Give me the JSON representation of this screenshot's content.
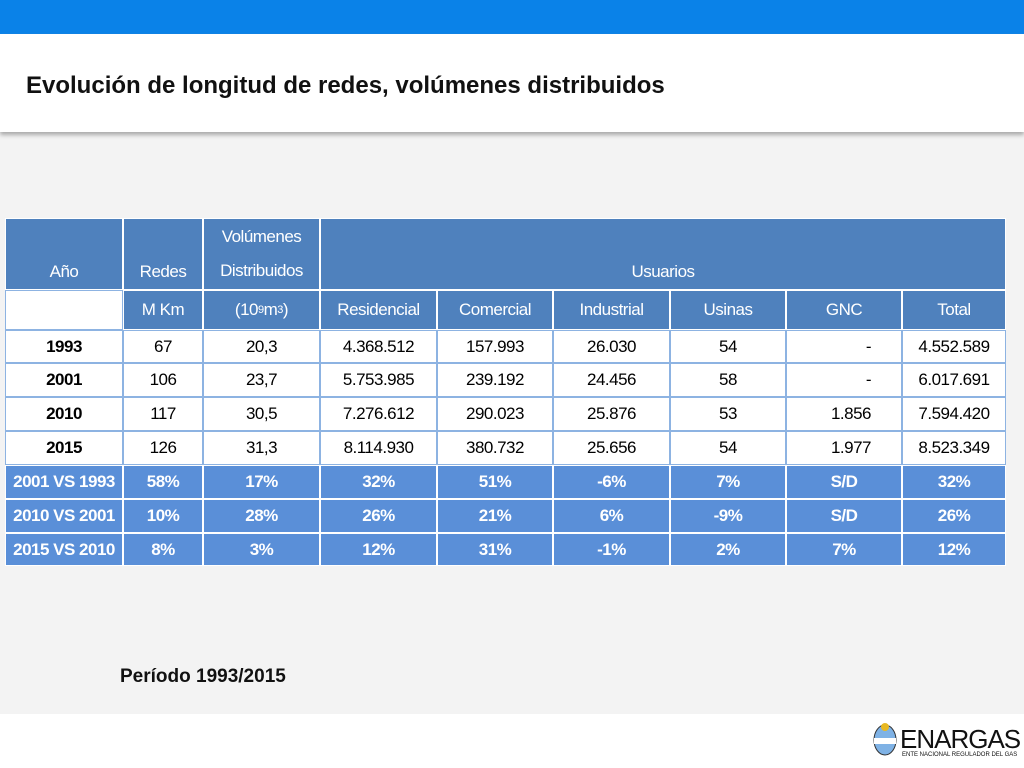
{
  "header": {
    "title": "Evolución de longitud de redes, volúmenes distribuidos"
  },
  "table": {
    "headers": {
      "ano": "Año",
      "redes": "Redes",
      "volumenes": "Volúmenes",
      "distribuidos": "Distribuidos",
      "usuarios": "Usuarios",
      "redes_unit": "M Km",
      "vol_unit": [
        "(10",
        "9",
        " m",
        "3",
        " )"
      ],
      "columns": [
        "Residencial",
        "Comercial",
        "Industrial",
        "Usinas",
        "GNC",
        "Total"
      ]
    },
    "rows": [
      [
        "1993",
        "67",
        "20,3",
        "4.368.512",
        "157.993",
        "26.030",
        "54",
        "-",
        "4.552.589"
      ],
      [
        "2001",
        "106",
        "23,7",
        "5.753.985",
        "239.192",
        "24.456",
        "58",
        "-",
        "6.017.691"
      ],
      [
        "2010",
        "117",
        "30,5",
        "7.276.612",
        "290.023",
        "25.876",
        "53",
        "1.856",
        "7.594.420"
      ],
      [
        "2015",
        "126",
        "31,3",
        "8.114.930",
        "380.732",
        "25.656",
        "54",
        "1.977",
        "8.523.349"
      ],
      [
        "2001 VS 1993",
        "58%",
        "17%",
        "32%",
        "51%",
        "-6%",
        "7%",
        "S/D",
        "32%"
      ],
      [
        "2010 VS 2001",
        "10%",
        "28%",
        "26%",
        "21%",
        "6%",
        "-9%",
        "S/D",
        "26%"
      ],
      [
        "2015 VS 2010",
        "8%",
        "3%",
        "12%",
        "31%",
        "-1%",
        "2%",
        "7%",
        "12%"
      ]
    ]
  },
  "footer": {
    "period": "Período 1993/2015",
    "logo": "ENARGAS",
    "logo_sub": "ENTE NACIONAL REGULADOR DEL GAS"
  }
}
